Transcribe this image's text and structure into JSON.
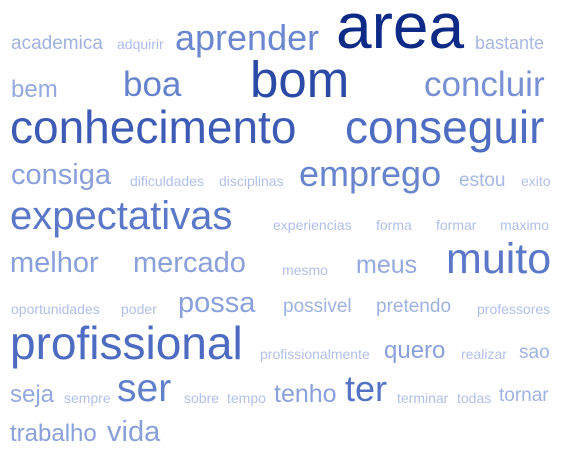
{
  "word_cloud": {
    "words": [
      {
        "text": "academica",
        "color": "#a0b2e0"
      },
      {
        "text": "adquirir",
        "color": "#aebde6"
      },
      {
        "text": "aprender",
        "color": "#6b87cf"
      },
      {
        "text": "area",
        "color": "#0d2a86"
      },
      {
        "text": "bastante",
        "color": "#a8b8e3"
      },
      {
        "text": "bem",
        "color": "#95a9de"
      },
      {
        "text": "boa",
        "color": "#6582cc"
      },
      {
        "text": "bom",
        "color": "#2a4aa6"
      },
      {
        "text": "concluir",
        "color": "#7891d4"
      },
      {
        "text": "conhecimento",
        "color": "#3d5bb5"
      },
      {
        "text": "conseguir",
        "color": "#4e6cc1"
      },
      {
        "text": "consiga",
        "color": "#8aa0da"
      },
      {
        "text": "dificuldades",
        "color": "#b2c0e8"
      },
      {
        "text": "disciplinas",
        "color": "#b2c0e8"
      },
      {
        "text": "emprego",
        "color": "#6784cd"
      },
      {
        "text": "estou",
        "color": "#a6b7e3"
      },
      {
        "text": "exito",
        "color": "#b2c0e8"
      },
      {
        "text": "expectativas",
        "color": "#5a78c7"
      },
      {
        "text": "experiencias",
        "color": "#b2c0e8"
      },
      {
        "text": "forma",
        "color": "#b2c0e8"
      },
      {
        "text": "formar",
        "color": "#b2c0e8"
      },
      {
        "text": "maximo",
        "color": "#b2c0e8"
      },
      {
        "text": "melhor",
        "color": "#8aa0da"
      },
      {
        "text": "mercado",
        "color": "#8aa0da"
      },
      {
        "text": "mesmo",
        "color": "#b2c0e8"
      },
      {
        "text": "meus",
        "color": "#95a9de"
      },
      {
        "text": "muito",
        "color": "#5a78c7"
      },
      {
        "text": "oportunidades",
        "color": "#b2c0e8"
      },
      {
        "text": "poder",
        "color": "#b2c0e8"
      },
      {
        "text": "possa",
        "color": "#8aa0da"
      },
      {
        "text": "possivel",
        "color": "#a0b2e0"
      },
      {
        "text": "pretendo",
        "color": "#a0b2e0"
      },
      {
        "text": "professores",
        "color": "#b2c0e8"
      },
      {
        "text": "profissional",
        "color": "#4d6bc0"
      },
      {
        "text": "profissionalmente",
        "color": "#b2c0e8"
      },
      {
        "text": "quero",
        "color": "#8aa0da"
      },
      {
        "text": "realizar",
        "color": "#b2c0e8"
      },
      {
        "text": "sao",
        "color": "#a0b2e0"
      },
      {
        "text": "seja",
        "color": "#95a9de"
      },
      {
        "text": "sempre",
        "color": "#b2c0e8"
      },
      {
        "text": "ser",
        "color": "#6080cb"
      },
      {
        "text": "sobre",
        "color": "#b2c0e8"
      },
      {
        "text": "tempo",
        "color": "#b2c0e8"
      },
      {
        "text": "tenho",
        "color": "#8aa0da"
      },
      {
        "text": "ter",
        "color": "#5573c4"
      },
      {
        "text": "terminar",
        "color": "#b2c0e8"
      },
      {
        "text": "todas",
        "color": "#b2c0e8"
      },
      {
        "text": "tornar",
        "color": "#a0b2e0"
      },
      {
        "text": "trabalho",
        "color": "#8aa0da"
      },
      {
        "text": "vida",
        "color": "#8aa0da"
      }
    ]
  }
}
